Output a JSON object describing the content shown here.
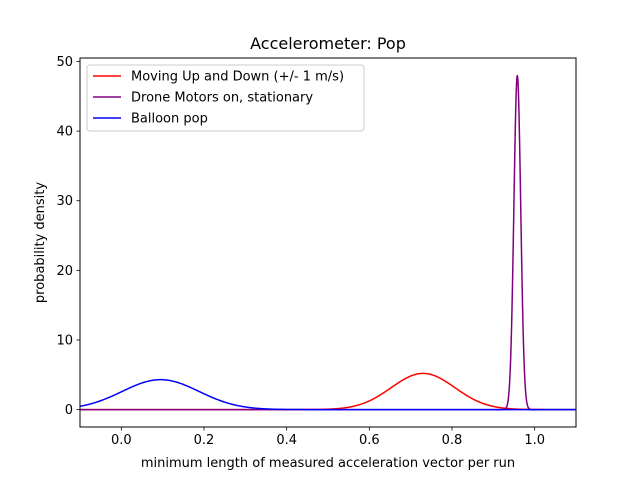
{
  "chart_data": {
    "type": "line",
    "title": "Accelerometer: Pop",
    "xlabel": "minimum length of measured acceleration vector per run",
    "ylabel": "probability density",
    "xlim": [
      -0.1,
      1.1
    ],
    "ylim": [
      -2.5,
      50.5
    ],
    "xticks": [
      0.0,
      0.2,
      0.4,
      0.6,
      0.8,
      1.0
    ],
    "xtick_labels": [
      "0.0",
      "0.2",
      "0.4",
      "0.6",
      "0.8",
      "1.0"
    ],
    "yticks": [
      0,
      10,
      20,
      30,
      40,
      50
    ],
    "ytick_labels": [
      "0",
      "10",
      "20",
      "30",
      "40",
      "50"
    ],
    "grid": false,
    "legend_position": "top-left",
    "series": [
      {
        "name": "Moving Up and Down (+/- 1 m/s)",
        "color": "#ff0000",
        "distribution": "normal",
        "peak_x": 0.73,
        "peak_y": 5.2
      },
      {
        "name": "Drone Motors on, stationary",
        "color": "#800080",
        "distribution": "normal",
        "peak_x": 0.958,
        "peak_y": 48.0
      },
      {
        "name": "Balloon pop",
        "color": "#0000ff",
        "distribution": "normal",
        "peak_x": 0.095,
        "peak_y": 4.3
      }
    ]
  }
}
